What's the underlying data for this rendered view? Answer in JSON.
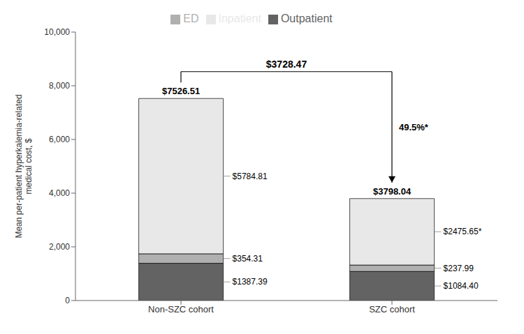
{
  "chart_data": {
    "type": "bar",
    "stacked": true,
    "data_labels": true,
    "categories": [
      "Non-SZC cohort",
      "SZC cohort"
    ],
    "series": [
      {
        "name": "Outpatient",
        "color": "#636363",
        "values": [
          1387.39,
          1084.4
        ],
        "value_labels": [
          "$1387.39",
          "$1084.40"
        ]
      },
      {
        "name": "ED",
        "color": "#b0b0b0",
        "values": [
          354.31,
          237.99
        ],
        "value_labels": [
          "$354.31",
          "$237.99"
        ]
      },
      {
        "name": "Inpatient",
        "color": "#e8e8e8",
        "values": [
          5784.81,
          2475.65
        ],
        "value_labels": [
          "$5784.81",
          "$2475.65*"
        ]
      }
    ],
    "totals": [
      7526.51,
      3798.04
    ],
    "total_labels": [
      "$7526.51",
      "$3798.04"
    ],
    "comparison": {
      "label": "$3728.47",
      "pct_label": "49.5%*"
    },
    "ylabel": "Mean per-patient hyperkalemia-related\nmedical cost, $",
    "ylim": [
      0,
      10000
    ],
    "yticks": [
      0,
      {
        "value": 2000,
        "label": "2,000"
      },
      {
        "value": 4000,
        "label": "4,000"
      },
      {
        "value": 6000,
        "label": "6,000"
      },
      {
        "value": 8000,
        "label": "8,000"
      },
      {
        "value": 10000,
        "label": "10,000"
      }
    ],
    "grid": false,
    "legend": "upper center"
  }
}
